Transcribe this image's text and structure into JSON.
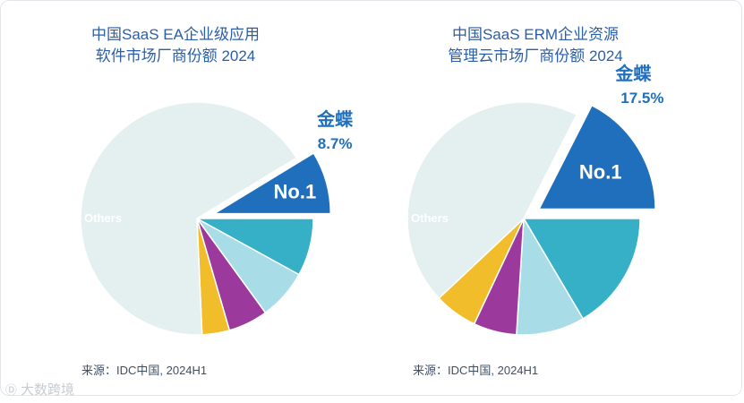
{
  "chart_data": [
    {
      "type": "pie",
      "title_lines": [
        "中国SaaS EA企业级应用",
        "软件市场厂商份额 2024"
      ],
      "source": "来源：IDC中国, 2024H1",
      "slices": [
        {
          "name": "金蝶",
          "value": 8.7,
          "color": "#1f6fbd",
          "exploded": true,
          "inner_label": "No.1",
          "value_label": "8.7%"
        },
        {
          "name": "",
          "value": 8.0,
          "color": "#35b0c6"
        },
        {
          "name": "",
          "value": 7.0,
          "color": "#a8dde8"
        },
        {
          "name": "",
          "value": 5.5,
          "color": "#9b3a9c"
        },
        {
          "name": "",
          "value": 3.8,
          "color": "#f2bd2a"
        },
        {
          "name": "Others",
          "value": 67.0,
          "color": "#e4efef",
          "inner_label": "Others"
        }
      ]
    },
    {
      "type": "pie",
      "title_lines": [
        "中国SaaS ERM企业资源",
        "管理云市场厂商份额 2024"
      ],
      "source": "来源：IDC中国, 2024H1",
      "slices": [
        {
          "name": "金蝶",
          "value": 17.5,
          "color": "#1f6fbd",
          "exploded": true,
          "inner_label": "No.1",
          "value_label": "17.5%"
        },
        {
          "name": "",
          "value": 16.5,
          "color": "#35b0c6"
        },
        {
          "name": "",
          "value": 9.5,
          "color": "#a8dde8"
        },
        {
          "name": "",
          "value": 6.0,
          "color": "#9b3a9c"
        },
        {
          "name": "",
          "value": 6.0,
          "color": "#f2bd2a"
        },
        {
          "name": "Others",
          "value": 44.5,
          "color": "#e4efef",
          "inner_label": "Others"
        }
      ]
    }
  ],
  "watermark": {
    "text": "大数跨境",
    "logo_text": "Ⓓ"
  }
}
